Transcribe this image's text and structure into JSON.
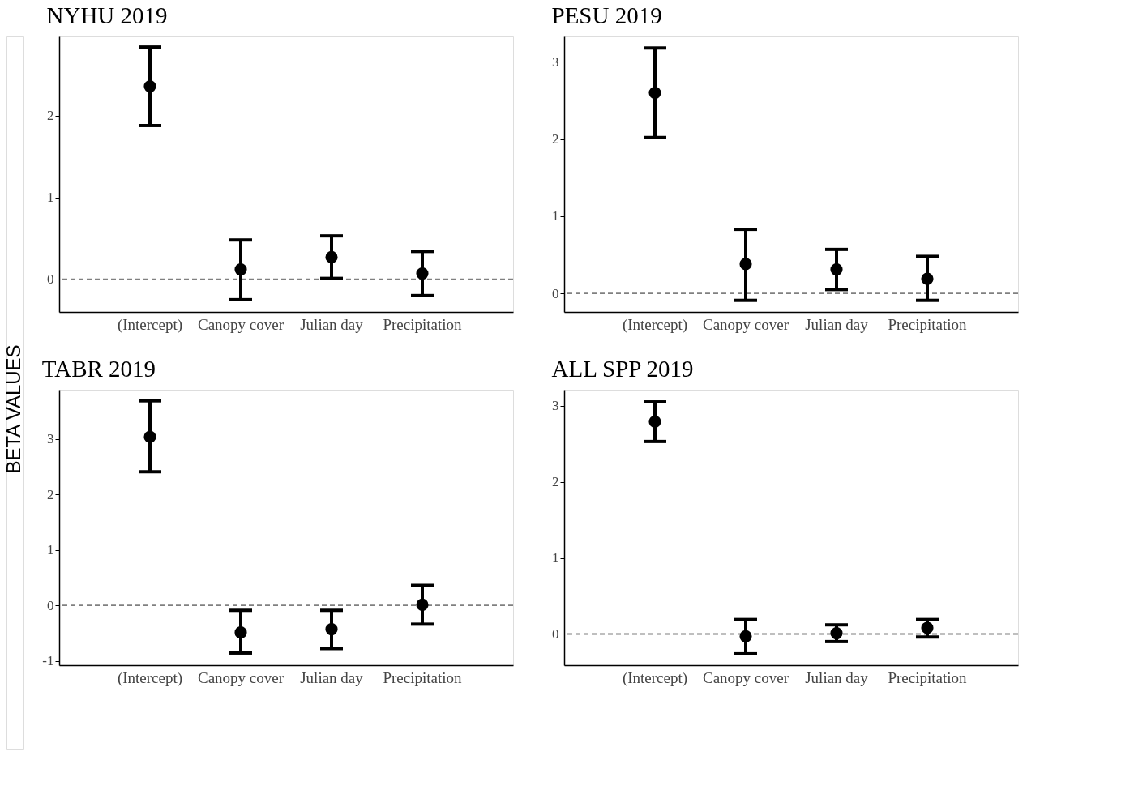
{
  "chart_data": [
    {
      "type": "scatter",
      "title": "NYHU 2019",
      "ylabel": "BETA VALUES",
      "categories": [
        "(Intercept)",
        "Canopy cover",
        "Julian day",
        "Precipitation"
      ],
      "marker": "circle",
      "grid": false,
      "series": [
        {
          "color": "#000000",
          "values": [
            2.36,
            0.12,
            0.27,
            0.07
          ],
          "errors": [
            [
              1.88,
              2.84
            ],
            [
              -0.25,
              0.48
            ],
            [
              0.01,
              0.53
            ],
            [
              -0.2,
              0.34
            ]
          ]
        }
      ],
      "ylim": [
        -0.4,
        2.97
      ],
      "yticks": [
        0,
        1,
        2
      ],
      "ref_lines": [
        {
          "axis": "y",
          "value": 0,
          "color": "#808080",
          "line_style": "dashed"
        }
      ]
    },
    {
      "type": "scatter",
      "title": "PESU 2019",
      "categories": [
        "(Intercept)",
        "Canopy cover",
        "Julian day",
        "Precipitation"
      ],
      "marker": "circle",
      "grid": false,
      "series": [
        {
          "color": "#000000",
          "values": [
            2.6,
            0.38,
            0.31,
            0.19
          ],
          "errors": [
            [
              2.02,
              3.18
            ],
            [
              -0.09,
              0.83
            ],
            [
              0.05,
              0.57
            ],
            [
              -0.09,
              0.48
            ]
          ]
        }
      ],
      "ylim": [
        -0.24,
        3.33
      ],
      "yticks": [
        0,
        1,
        2,
        3
      ],
      "ref_lines": [
        {
          "axis": "y",
          "value": 0,
          "color": "#808080",
          "line_style": "dashed"
        }
      ]
    },
    {
      "type": "scatter",
      "title": "TABR 2019",
      "categories": [
        "(Intercept)",
        "Canopy cover",
        "Julian day",
        "Precipitation"
      ],
      "marker": "circle",
      "grid": false,
      "series": [
        {
          "color": "#000000",
          "values": [
            3.04,
            -0.49,
            -0.43,
            0.01
          ],
          "errors": [
            [
              2.41,
              3.69
            ],
            [
              -0.86,
              -0.09
            ],
            [
              -0.78,
              -0.09
            ],
            [
              -0.34,
              0.36
            ]
          ]
        }
      ],
      "ylim": [
        -1.08,
        3.89
      ],
      "yticks": [
        -1,
        0,
        1,
        2,
        3
      ],
      "ref_lines": [
        {
          "axis": "y",
          "value": 0,
          "color": "#808080",
          "line_style": "dashed"
        }
      ]
    },
    {
      "type": "scatter",
      "title": "ALL SPP 2019",
      "categories": [
        "(Intercept)",
        "Canopy cover",
        "Julian day",
        "Precipitation"
      ],
      "marker": "circle",
      "grid": false,
      "series": [
        {
          "color": "#000000",
          "values": [
            2.79,
            -0.03,
            0.01,
            0.08
          ],
          "errors": [
            [
              2.53,
              3.05
            ],
            [
              -0.26,
              0.19
            ],
            [
              -0.1,
              0.12
            ],
            [
              -0.04,
              0.19
            ]
          ]
        }
      ],
      "ylim": [
        -0.41,
        3.21
      ],
      "yticks": [
        0,
        1,
        2,
        3
      ],
      "ref_lines": [
        {
          "axis": "y",
          "value": 0,
          "color": "#808080",
          "line_style": "dashed"
        }
      ]
    }
  ]
}
